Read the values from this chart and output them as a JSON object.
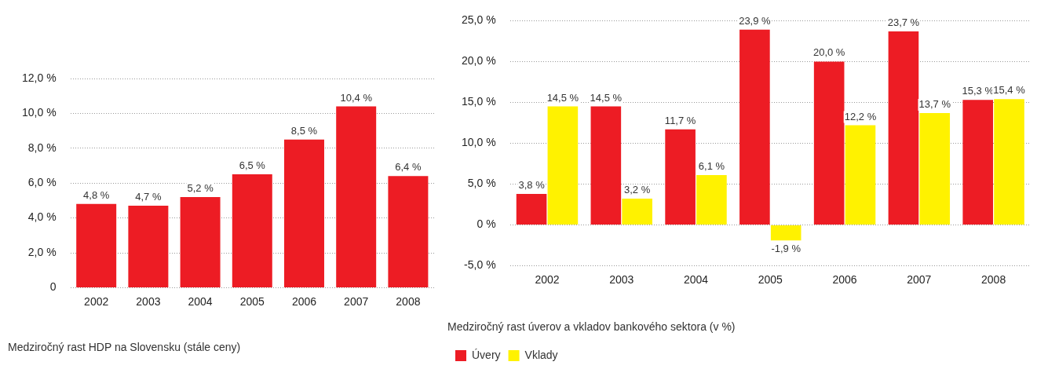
{
  "chart_data": [
    {
      "type": "bar",
      "title": "Medziročný rast HDP na Slovensku (stále ceny)",
      "categories": [
        "2002",
        "2003",
        "2004",
        "2005",
        "2006",
        "2007",
        "2008"
      ],
      "series": [
        {
          "color": "#ed1c24",
          "values": [
            4.8,
            4.7,
            5.2,
            6.5,
            8.5,
            10.4,
            6.4
          ],
          "value_labels": [
            "4,8 %",
            "4,7 %",
            "5,2 %",
            "6,5 %",
            "8,5 %",
            "10,4 %",
            "6,4 %"
          ]
        }
      ],
      "ylim": [
        0,
        12
      ],
      "yticks": [
        0,
        {
          "value": 2,
          "label": "2,0 %"
        },
        {
          "value": 4,
          "label": "4,0 %"
        },
        {
          "value": 6,
          "label": "6,0 %"
        },
        {
          "value": 8,
          "label": "8,0 %"
        },
        {
          "value": 10,
          "label": "10,0 %"
        },
        {
          "value": 12,
          "label": "12,0 %"
        }
      ],
      "grid": "y",
      "legend": false
    },
    {
      "type": "bar",
      "title": "Medziročný rast úverov a vkladov bankového sektora (v %)",
      "categories": [
        "2002",
        "2003",
        "2004",
        "2005",
        "2006",
        "2007",
        "2008"
      ],
      "series": [
        {
          "name": "Úvery",
          "color": "#ed1c24",
          "values": [
            3.8,
            14.5,
            11.7,
            23.9,
            20.0,
            23.7,
            15.3
          ],
          "value_labels": [
            "3,8 %",
            "14,5 %",
            "11,7 %",
            "23,9 %",
            "20,0 %",
            "23,7 %",
            "15,3 %"
          ]
        },
        {
          "name": "Vklady",
          "color": "#fff200",
          "values": [
            14.5,
            3.2,
            6.1,
            -1.9,
            12.2,
            13.7,
            15.4
          ],
          "value_labels": [
            "14,5 %",
            "3,2 %",
            "6,1 %",
            "-1,9 %",
            "12,2 %",
            "13,7 %",
            "15,4 %"
          ]
        }
      ],
      "ylim": [
        -5,
        25
      ],
      "yticks": [
        {
          "value": -5,
          "label": "-5,0 %"
        },
        {
          "value": 0,
          "label": "0 %"
        },
        {
          "value": 5,
          "label": "5,0 %"
        },
        {
          "value": 10,
          "label": "10,0 %"
        },
        {
          "value": 15,
          "label": "15,0 %"
        },
        {
          "value": 20,
          "label": "20,0 %"
        },
        {
          "value": 25,
          "label": "25,0 %"
        }
      ],
      "grid": "y",
      "legend": "bottom left"
    }
  ]
}
